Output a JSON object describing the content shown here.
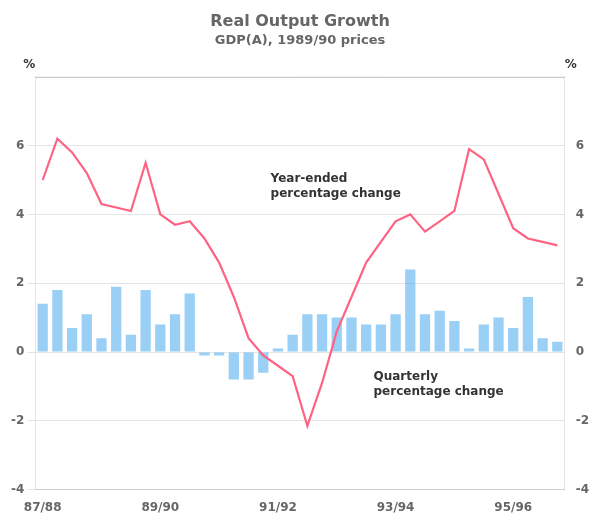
{
  "chart_data": {
    "type": "bar",
    "title": "Real Output Growth",
    "subtitle": "GDP(A), 1989/90 prices",
    "categories": [
      "87/88",
      null,
      null,
      null,
      null,
      null,
      null,
      null,
      "89/90",
      null,
      null,
      null,
      null,
      null,
      null,
      null,
      "91/92",
      null,
      null,
      null,
      null,
      null,
      null,
      null,
      "93/94",
      null,
      null,
      null,
      null,
      null,
      null,
      null,
      "95/96",
      null,
      null,
      null
    ],
    "series": [
      {
        "type": "bar",
        "values": [
          1.4,
          1.8,
          0.7,
          1.1,
          0.4,
          1.9,
          0.5,
          1.8,
          0.8,
          1.1,
          1.7,
          -0.1,
          -0.1,
          -0.8,
          -0.8,
          -0.6,
          0.1,
          0.5,
          1.1,
          1.1,
          1.0,
          1.0,
          0.8,
          0.8,
          1.1,
          2.4,
          1.1,
          1.2,
          0.9,
          0.1,
          0.8,
          1.0,
          0.7,
          1.6,
          0.4,
          0.3
        ]
      },
      {
        "type": "line",
        "values": [
          5.0,
          6.2,
          5.8,
          5.2,
          4.3,
          4.2,
          4.1,
          5.5,
          4.0,
          3.7,
          3.8,
          3.3,
          2.6,
          1.6,
          0.4,
          -0.1,
          -0.4,
          -0.7,
          -2.15,
          -0.9,
          0.6,
          1.6,
          2.6,
          3.2,
          3.8,
          4.0,
          3.5,
          3.8,
          4.1,
          5.9,
          5.6,
          4.6,
          3.6,
          3.3,
          3.2,
          3.1
        ]
      }
    ],
    "ylabel": "%",
    "y2label": "%",
    "ylim": [
      -4,
      8
    ],
    "yticks": [
      -4,
      -2,
      0,
      2,
      4,
      6
    ],
    "y2lim": [
      -4,
      8
    ],
    "y2ticks": [
      -4,
      -2,
      0,
      2,
      4,
      6
    ],
    "grid": true,
    "annotations": [
      {
        "text": "Year-ended\npercentage change",
        "x": 15.5,
        "y": 5.2
      },
      {
        "text": "Quarterly\npercentage change",
        "x": 22.5,
        "y": -0.55
      }
    ]
  }
}
